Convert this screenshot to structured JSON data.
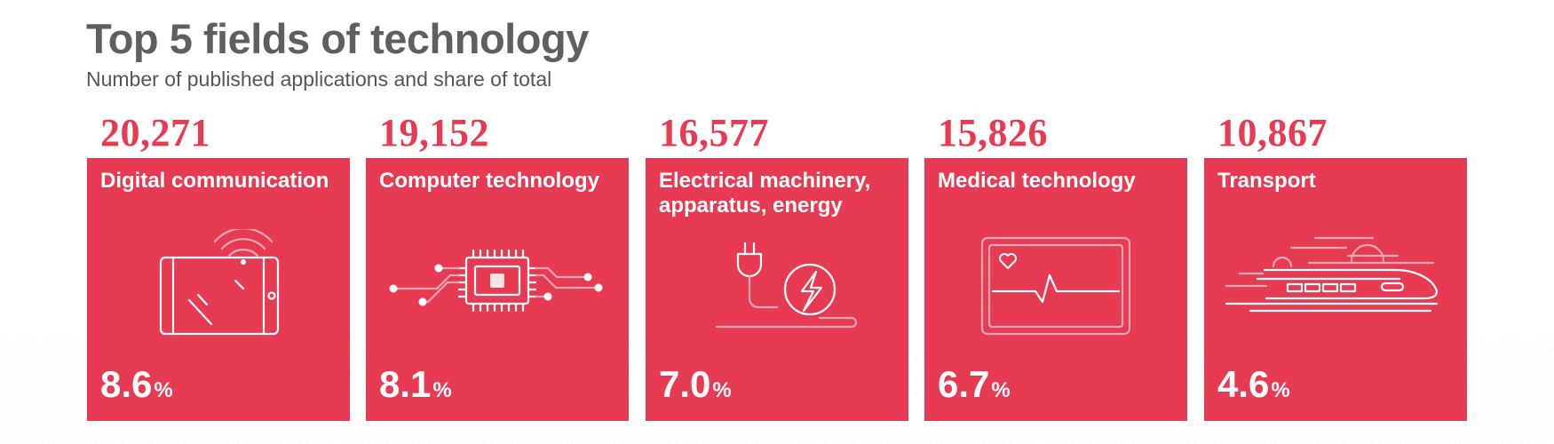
{
  "title": "Top 5 fields of technology",
  "subtitle": "Number of published applications and share of total",
  "colors": {
    "card": "#e63b52",
    "count_text": "#e63b52",
    "card_text": "#ffffff",
    "title_text": "#5f5f5f"
  },
  "chart_data": {
    "type": "bar",
    "title": "Top 5 fields of technology",
    "subtitle": "Number of published applications and share of total",
    "categories": [
      "Digital communication",
      "Computer technology",
      "Electrical machinery, apparatus, energy",
      "Medical technology",
      "Transport"
    ],
    "series": [
      {
        "name": "",
        "values": [
          20271,
          19152,
          16577,
          15826,
          10867
        ],
        "labels": [
          "20,271",
          "19,152",
          "16,577",
          "15,826",
          "10,867"
        ]
      }
    ],
    "shares": [
      {
        "value": "8.6",
        "unit": "%"
      },
      {
        "value": "8.1",
        "unit": "%"
      },
      {
        "value": "7.0",
        "unit": "%"
      },
      {
        "value": "6.7",
        "unit": "%"
      },
      {
        "value": "4.6",
        "unit": "%"
      }
    ],
    "icons": [
      "tablet-wifi-icon",
      "microchip-icon",
      "plug-lightning-icon",
      "heart-monitor-icon",
      "high-speed-train-icon"
    ]
  }
}
